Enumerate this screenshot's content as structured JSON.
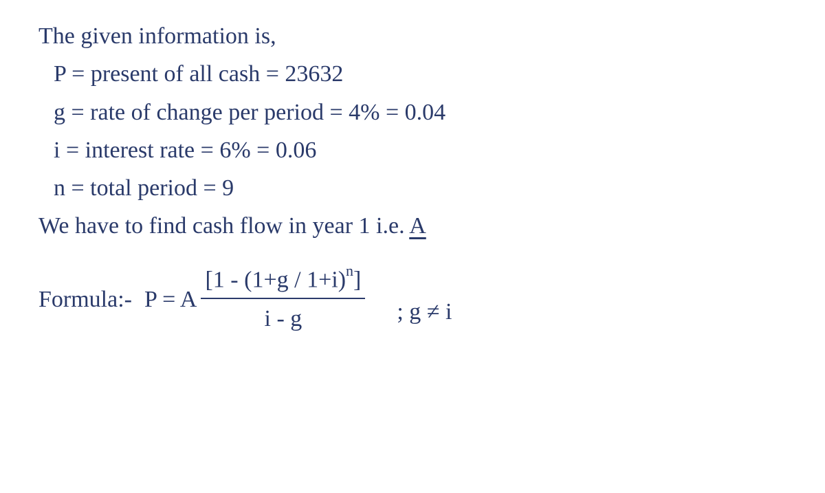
{
  "colors": {
    "ink": "#2a3a6a",
    "background": "#ffffff"
  },
  "typography": {
    "family": "Comic Sans MS / handwritten cursive",
    "size_pt": 26,
    "line_height": 1.45
  },
  "lines": {
    "intro": "The given information is,",
    "p_def": "P = present of all cash = 23632",
    "g_def": "g = rate of change per period = 4% = 0.04",
    "i_def": "i = interest rate = 6% = 0.06",
    "n_def": "n = total period = 9",
    "task_prefix": "We have to find cash flow in year 1 i.e. ",
    "task_var": "A"
  },
  "formula": {
    "label": "Formula:-",
    "lead": "P = A",
    "numerator": "[1 - (1+g / 1+i)",
    "exponent": "n",
    "numerator_close": "]",
    "denominator": "i - g",
    "condition": "; g ≠ i"
  }
}
